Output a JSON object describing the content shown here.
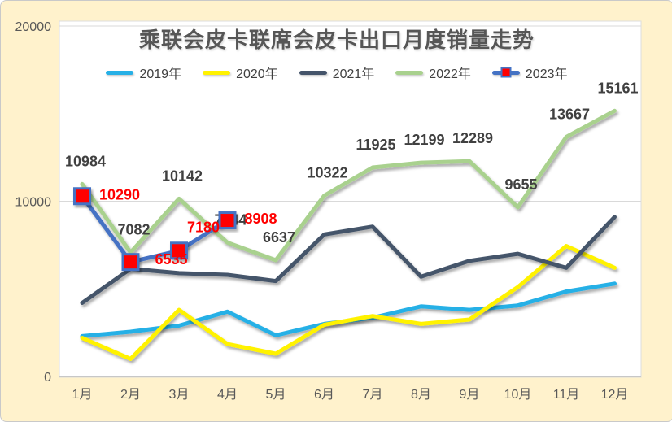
{
  "frame": {
    "background_color": "#FFF2CC",
    "border_color": "#C9C9C9",
    "plot_background": "#FFFFFF",
    "gridline_color": "#D9D9D9",
    "axis_line_color": "#C0C0C0",
    "axis_text_color": "#595959",
    "title_color": "#565656"
  },
  "chart_data": {
    "type": "line",
    "title": "乘联会皮卡联席会皮卡出口月度销量走势",
    "xlabel": "",
    "ylabel": "",
    "categories": [
      "1月",
      "2月",
      "3月",
      "4月",
      "5月",
      "6月",
      "7月",
      "8月",
      "9月",
      "10月",
      "11月",
      "12月"
    ],
    "y_axis": {
      "ticks": [
        0,
        10000,
        20000
      ],
      "tick_labels": [
        "0",
        "10000",
        "20000"
      ],
      "range": [
        0,
        20000
      ]
    },
    "grid": "horizontal",
    "legend_position": "top",
    "series": [
      {
        "name": "2019年",
        "color": "#27B0E6",
        "labeled": false,
        "values": [
          2300,
          2550,
          2900,
          3700,
          2350,
          3000,
          3350,
          4000,
          3800,
          4050,
          4850,
          5300
        ]
      },
      {
        "name": "2020年",
        "color": "#FFF200",
        "labeled": false,
        "values": [
          2200,
          1000,
          3800,
          1850,
          1300,
          2950,
          3450,
          3000,
          3250,
          5100,
          7450,
          6200
        ]
      },
      {
        "name": "2021年",
        "color": "#44546A",
        "labeled": false,
        "values": [
          4200,
          6150,
          5900,
          5800,
          5450,
          8100,
          8550,
          5700,
          6600,
          7000,
          6200,
          9100
        ]
      },
      {
        "name": "2022年",
        "color": "#A9D18E",
        "labeled": true,
        "label_color": "#404040",
        "label_offset_default": {
          "dx": 4,
          "dy": -28
        },
        "values": [
          10984,
          7082,
          10142,
          7644,
          6637,
          10322,
          11925,
          12199,
          12289,
          9655,
          13667,
          15161
        ]
      },
      {
        "name": "2023年",
        "color": "#4472C4",
        "labeled": true,
        "label_color": "#FF0000",
        "marker": {
          "shape": "square",
          "fill": "#FF0000",
          "outline": "#4472C4",
          "size": 19
        },
        "label_offsets": [
          {
            "dx": 46,
            "dy": -2
          },
          {
            "dx": 50,
            "dy": -3
          },
          {
            "dx": 30,
            "dy": -29
          },
          {
            "dx": 41,
            "dy": -2
          }
        ],
        "values": [
          10290,
          6535,
          7180,
          8908
        ]
      }
    ]
  }
}
